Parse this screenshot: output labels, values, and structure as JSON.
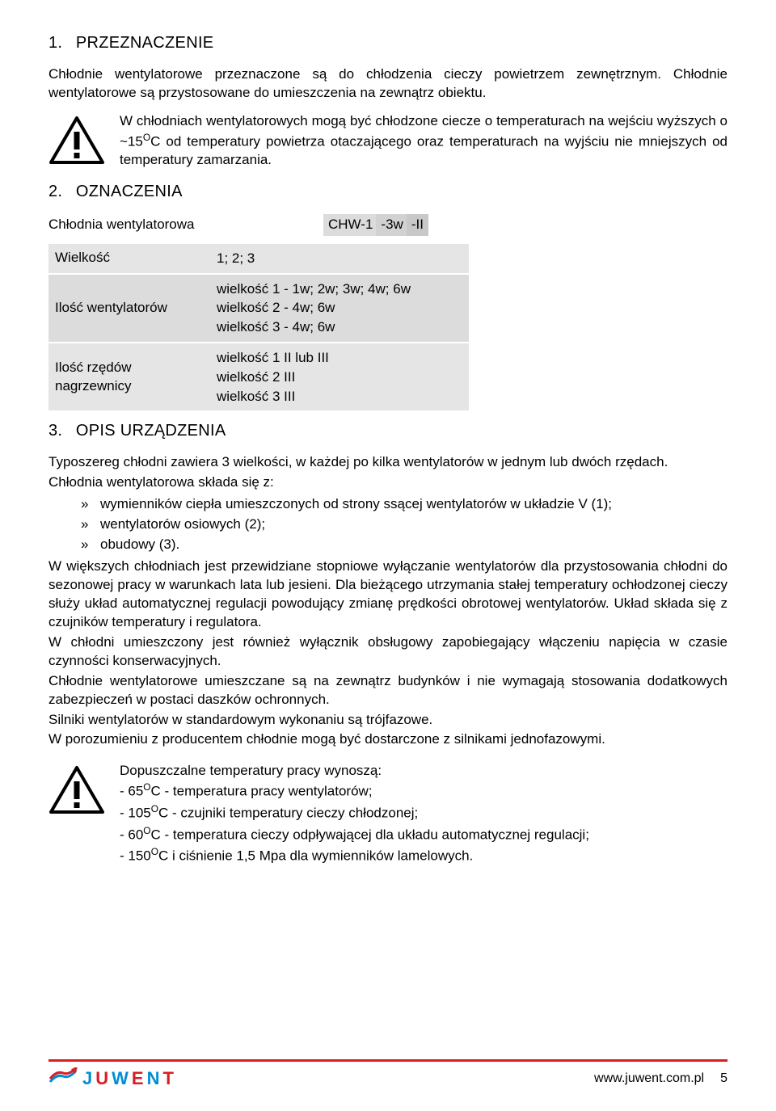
{
  "section1": {
    "num": "1.",
    "title": "PRZEZNACZENIE",
    "intro": "Chłodnie wentylatorowe przeznaczone są do chłodzenia cieczy powietrzem zewnętrznym. Chłodnie wentylatorowe są przystosowane do umieszczenia na zewnątrz obiektu.",
    "warning_pre": "W chłodniach wentylatorowych mogą być chłodzone ciecze o temperaturach na wejściu wyższych o ~15",
    "warning_sup": "O",
    "warning_post": "C od temperatury powietrza otaczającego oraz temperaturach na wyjściu nie mniejszych od temperatury zamarzania."
  },
  "section2": {
    "num": "2.",
    "title": "OZNACZENIA",
    "line1_label": "Chłodnia wentylatorowa",
    "chw": {
      "a": "CHW-1",
      "b": "-3w",
      "c": "-II"
    },
    "rows": [
      {
        "label": "Wielkość",
        "value": "1; 2; 3"
      },
      {
        "label": "Ilość wentylatorów",
        "value": "wielkość 1 - 1w; 2w; 3w; 4w; 6w\nwielkość 2 - 4w; 6w\nwielkość 3 - 4w; 6w"
      },
      {
        "label": "Ilość rzędów nagrzewnicy",
        "value": "wielkość 1 II lub III\nwielkość 2 III\nwielkość 3 III"
      }
    ]
  },
  "section3": {
    "num": "3.",
    "title": "OPIS URZĄDZENIA",
    "p1": "Typoszereg chłodni zawiera 3 wielkości, w każdej po kilka wentylatorów w jednym lub dwóch rzędach.",
    "p2": "Chłodnia wentylatorowa składa się z:",
    "bullets": [
      "wymienników ciepła umieszczonych od strony ssącej wentylatorów w układzie V (1);",
      "wentylatorów osiowych (2);",
      "obudowy (3)."
    ],
    "p3": "W większych chłodniach jest przewidziane stopniowe wyłączanie wentylatorów dla przystosowania chłodni do sezonowej pracy w warunkach lata lub jesieni. Dla bieżącego utrzymania stałej temperatury ochłodzonej cieczy służy układ automatycznej regulacji powodujący zmianę prędkości obrotowej wentylatorów. Układ składa się z czujników temperatury i regulatora.",
    "p4": "W chłodni umieszczony jest również wyłącznik obsługowy zapobiegający włączeniu napięcia w czasie czynności konserwacyjnych.",
    "p5": "Chłodnie wentylatorowe umieszczane są na zewnątrz budynków i nie wymagają stosowania dodatkowych zabezpieczeń w postaci daszków ochronnych.",
    "p6": "Silniki wentylatorów w standardowym wykonaniu są trójfazowe.",
    "p7": "W porozumieniu z producentem chłodnie mogą być dostarczone z silnikami jednofazowymi.",
    "temps_title": "Dopuszczalne temperatury pracy wynoszą:",
    "temps": [
      {
        "dash": "- 65",
        "sup": "O",
        "rest": "C - temperatura pracy wentylatorów;"
      },
      {
        "dash": "- 105",
        "sup": "O",
        "rest": "C - czujniki temperatury cieczy chłodzonej;"
      },
      {
        "dash": "- 60",
        "sup": "O",
        "rest": "C - temperatura cieczy odpływającej dla układu automatycznej regulacji;"
      },
      {
        "dash": "- 150",
        "sup": "O",
        "rest": "C i ciśnienie 1,5 Mpa dla wymienników lamelowych."
      }
    ]
  },
  "footer": {
    "logo_letters": {
      "j": "J",
      "u": "U",
      "w": "W",
      "e": "E",
      "n": "N",
      "t": "T"
    },
    "url": "www.juwent.com.pl",
    "page": "5"
  },
  "colors": {
    "row_bg_a": "#e5e5e5",
    "row_bg_b": "#dcdcdc",
    "accent_red": "#d91e25",
    "accent_blue": "#008fd5"
  }
}
